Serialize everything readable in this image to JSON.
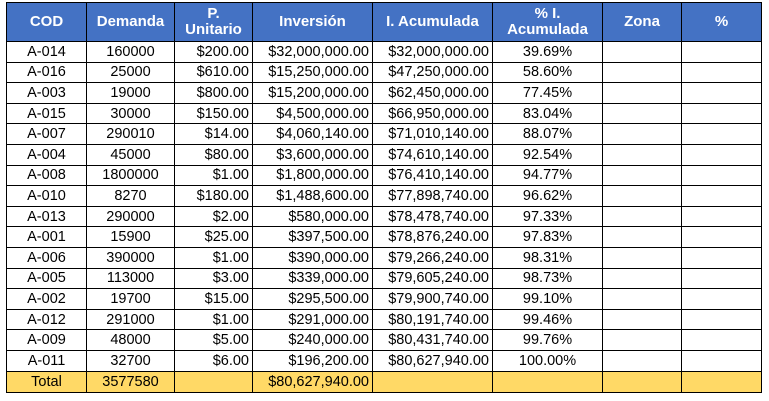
{
  "table": {
    "headers": {
      "cod": "COD",
      "demanda": "Demanda",
      "p_unitario_1": "P.",
      "p_unitario_2": "Unitario",
      "inversion": "Inversión",
      "i_acumulada": "I. Acumulada",
      "pct_i_1": "% I.",
      "pct_i_2": "Acumulada",
      "zona": "Zona",
      "pct": "%"
    },
    "colors": {
      "header_bg": "#4472c4",
      "header_text": "#ffffff",
      "total_bg": "#ffd966",
      "border": "#000000"
    },
    "rows": [
      {
        "cod": "A-014",
        "demanda": "160000",
        "precio": "$200.00",
        "inversion": "$32,000,000.00",
        "acumulada": "$32,000,000.00",
        "pct": "39.69%"
      },
      {
        "cod": "A-016",
        "demanda": "25000",
        "precio": "$610.00",
        "inversion": "$15,250,000.00",
        "acumulada": "$47,250,000.00",
        "pct": "58.60%"
      },
      {
        "cod": "A-003",
        "demanda": "19000",
        "precio": "$800.00",
        "inversion": "$15,200,000.00",
        "acumulada": "$62,450,000.00",
        "pct": "77.45%"
      },
      {
        "cod": "A-015",
        "demanda": "30000",
        "precio": "$150.00",
        "inversion": "$4,500,000.00",
        "acumulada": "$66,950,000.00",
        "pct": "83.04%"
      },
      {
        "cod": "A-007",
        "demanda": "290010",
        "precio": "$14.00",
        "inversion": "$4,060,140.00",
        "acumulada": "$71,010,140.00",
        "pct": "88.07%"
      },
      {
        "cod": "A-004",
        "demanda": "45000",
        "precio": "$80.00",
        "inversion": "$3,600,000.00",
        "acumulada": "$74,610,140.00",
        "pct": "92.54%"
      },
      {
        "cod": "A-008",
        "demanda": "1800000",
        "precio": "$1.00",
        "inversion": "$1,800,000.00",
        "acumulada": "$76,410,140.00",
        "pct": "94.77%"
      },
      {
        "cod": "A-010",
        "demanda": "8270",
        "precio": "$180.00",
        "inversion": "$1,488,600.00",
        "acumulada": "$77,898,740.00",
        "pct": "96.62%"
      },
      {
        "cod": "A-013",
        "demanda": "290000",
        "precio": "$2.00",
        "inversion": "$580,000.00",
        "acumulada": "$78,478,740.00",
        "pct": "97.33%"
      },
      {
        "cod": "A-001",
        "demanda": "15900",
        "precio": "$25.00",
        "inversion": "$397,500.00",
        "acumulada": "$78,876,240.00",
        "pct": "97.83%"
      },
      {
        "cod": "A-006",
        "demanda": "390000",
        "precio": "$1.00",
        "inversion": "$390,000.00",
        "acumulada": "$79,266,240.00",
        "pct": "98.31%"
      },
      {
        "cod": "A-005",
        "demanda": "113000",
        "precio": "$3.00",
        "inversion": "$339,000.00",
        "acumulada": "$79,605,240.00",
        "pct": "98.73%"
      },
      {
        "cod": "A-002",
        "demanda": "19700",
        "precio": "$15.00",
        "inversion": "$295,500.00",
        "acumulada": "$79,900,740.00",
        "pct": "99.10%"
      },
      {
        "cod": "A-012",
        "demanda": "291000",
        "precio": "$1.00",
        "inversion": "$291,000.00",
        "acumulada": "$80,191,740.00",
        "pct": "99.46%"
      },
      {
        "cod": "A-009",
        "demanda": "48000",
        "precio": "$5.00",
        "inversion": "$240,000.00",
        "acumulada": "$80,431,740.00",
        "pct": "99.76%"
      },
      {
        "cod": "A-011",
        "demanda": "32700",
        "precio": "$6.00",
        "inversion": "$196,200.00",
        "acumulada": "$80,627,940.00",
        "pct": "100.00%"
      }
    ],
    "total": {
      "label": "Total",
      "demanda": "3577580",
      "inversion": "$80,627,940.00"
    }
  }
}
